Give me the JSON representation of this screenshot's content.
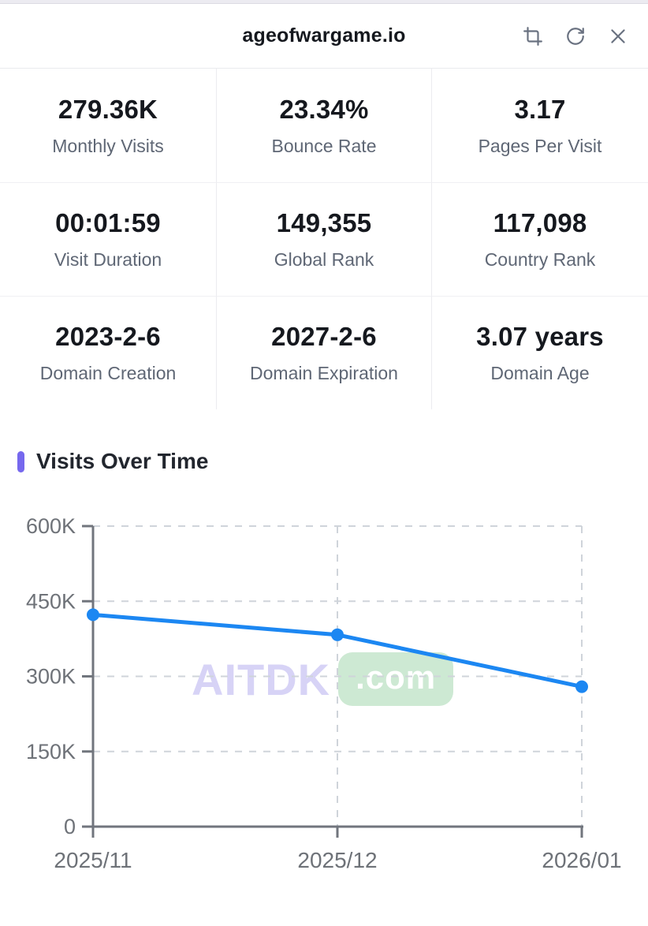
{
  "header": {
    "title": "ageofwargame.io",
    "icons": [
      "crop-icon",
      "refresh-icon",
      "close-icon"
    ]
  },
  "stats": {
    "items": [
      {
        "value": "279.36K",
        "label": "Monthly Visits"
      },
      {
        "value": "23.34%",
        "label": "Bounce Rate"
      },
      {
        "value": "3.17",
        "label": "Pages Per Visit"
      },
      {
        "value": "00:01:59",
        "label": "Visit Duration"
      },
      {
        "value": "149,355",
        "label": "Global Rank"
      },
      {
        "value": "117,098",
        "label": "Country Rank"
      },
      {
        "value": "2023-2-6",
        "label": "Domain Creation"
      },
      {
        "value": "2027-2-6",
        "label": "Domain Expiration"
      },
      {
        "value": "3.07 years",
        "label": "Domain Age"
      }
    ]
  },
  "section": {
    "title": "Visits Over Time"
  },
  "watermark": {
    "name": "AITDK",
    "suffix": ".com"
  },
  "colors": {
    "accent_purple": "#7668ee",
    "line_blue": "#1c87f2",
    "axis_gray": "#71757d",
    "grid_gray": "#cfd4da",
    "tick_label_gray": "#6e7278",
    "watermark_lavender": "#d7d3f6",
    "watermark_badge_green": "#cde9d3"
  },
  "chart_data": {
    "type": "line",
    "title": "Visits Over Time",
    "categories": [
      "2025/11",
      "2025/12",
      "2026/01"
    ],
    "series": [
      {
        "name": "Visits",
        "values": [
          423000,
          383000,
          279360
        ]
      }
    ],
    "xlabel": "",
    "ylabel": "",
    "ylim": [
      0,
      600000
    ],
    "ytick_values": [
      0,
      150000,
      300000,
      450000,
      600000
    ],
    "ytick_labels": [
      "0",
      "150K",
      "300K",
      "450K",
      "600K"
    ],
    "grid": "dashed",
    "legend": "none",
    "line_color": "#1c87f2",
    "marker": "filled-circle"
  }
}
